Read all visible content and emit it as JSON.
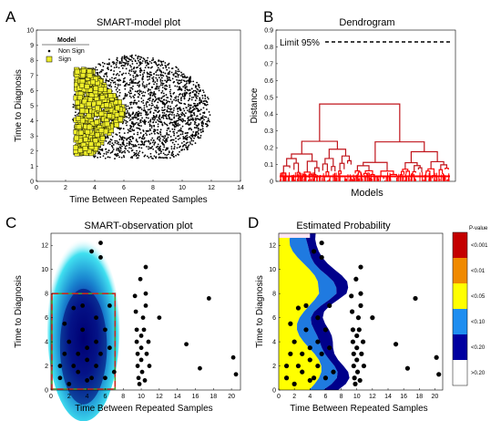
{
  "panels": {
    "A": {
      "letter": "A",
      "title": "SMART-model plot",
      "xlabel": "Time Between Repeated Samples",
      "ylabel": "Time to Diagnosis",
      "legend": {
        "title": "Model",
        "items": [
          "Non Sign",
          "Sign"
        ]
      }
    },
    "B": {
      "letter": "B",
      "title": "Dendrogram",
      "xlabel": "Models",
      "ylabel": "Distance",
      "annotation": "Limit 95%"
    },
    "C": {
      "letter": "C",
      "title": "SMART-observation plot",
      "xlabel": "Time Between Repeated Samples",
      "ylabel": "Time to Diagnosis"
    },
    "D": {
      "letter": "D",
      "title": "Estimated Probability",
      "xlabel": "Time Between Repeated Samples",
      "ylabel": "Time to Diagnosis",
      "colorbar": {
        "title": "P-value",
        "labels": [
          "<0.001",
          "<0.01",
          "<0.05",
          "<0.10",
          "<0.20",
          ">0.20"
        ]
      }
    }
  },
  "colors": {
    "nonsign": "#000000",
    "sign": "#ecec2a",
    "dendro": "#c0141b",
    "dendro_low": "#ff0000",
    "lowp": "#ffff00",
    "midp": "#1f7ae0",
    "highp": "#00008b"
  },
  "chart_data": [
    {
      "type": "scatter",
      "xlim": [
        0,
        14
      ],
      "ylim": [
        0,
        10
      ],
      "xticks": [
        "0",
        "2",
        "4",
        "6",
        "8",
        "10",
        "12",
        "14"
      ],
      "yticks": [
        "0",
        "1",
        "2",
        "3",
        "4",
        "5",
        "6",
        "7",
        "8",
        "9",
        "10"
      ],
      "cloud": {
        "x_range": [
          2.5,
          12.5
        ],
        "y_range": [
          1.5,
          8.8
        ],
        "center": [
          7.2,
          4.6
        ]
      },
      "series": [
        {
          "name": "Non Sign",
          "marker": "dot"
        },
        {
          "name": "Sign",
          "marker": "square",
          "x_range": [
            2.5,
            6.0
          ],
          "y_range": [
            1.8,
            7.4
          ]
        }
      ]
    },
    {
      "type": "dendrogram",
      "ylim": [
        0,
        0.9
      ],
      "yticks": [
        "0",
        "0.1",
        "0.2",
        "0.3",
        "0.4",
        "0.5",
        "0.6",
        "0.7",
        "0.8",
        "0.9"
      ],
      "threshold": 0.84,
      "top_merge": 0.46,
      "sub_merges": [
        0.38,
        0.35,
        0.3,
        0.27,
        0.25,
        0.22,
        0.2,
        0.18,
        0.16,
        0.13
      ]
    },
    {
      "type": "scatter",
      "xlim": [
        0,
        21
      ],
      "ylim": [
        0,
        13
      ],
      "xticks": [
        "0",
        "2",
        "4",
        "6",
        "8",
        "10",
        "12",
        "14",
        "16",
        "18",
        "20"
      ],
      "yticks": [
        "0",
        "2",
        "4",
        "6",
        "8",
        "10",
        "12"
      ],
      "highlight_box": {
        "x": [
          0,
          7
        ],
        "y": [
          0,
          8
        ]
      },
      "points": [
        [
          1,
          1
        ],
        [
          1,
          2
        ],
        [
          1.5,
          3
        ],
        [
          1.5,
          5.5
        ],
        [
          2,
          4
        ],
        [
          2,
          0.5
        ],
        [
          2.5,
          6.8
        ],
        [
          2.5,
          2
        ],
        [
          3,
          3
        ],
        [
          3,
          1.5
        ],
        [
          3.5,
          5
        ],
        [
          3.5,
          7
        ],
        [
          4,
          0.8
        ],
        [
          4,
          3.5
        ],
        [
          4,
          2.5
        ],
        [
          4.5,
          11.5
        ],
        [
          4.5,
          1
        ],
        [
          5,
          4
        ],
        [
          5,
          6
        ],
        [
          5,
          2
        ],
        [
          5.5,
          12.2
        ],
        [
          5.5,
          11
        ],
        [
          5.5,
          3
        ],
        [
          6,
          5
        ],
        [
          6,
          1
        ],
        [
          6.5,
          7
        ],
        [
          6.5,
          3.5
        ],
        [
          7,
          1.5
        ],
        [
          9.3,
          7.8
        ],
        [
          9.4,
          6.5
        ],
        [
          9.5,
          5
        ],
        [
          9.5,
          4
        ],
        [
          9.6,
          3
        ],
        [
          9.6,
          2
        ],
        [
          9.7,
          1
        ],
        [
          9.8,
          0.5
        ],
        [
          9.9,
          9.2
        ],
        [
          10,
          4.5
        ],
        [
          10,
          3.5
        ],
        [
          10,
          2.5
        ],
        [
          10.1,
          1.5
        ],
        [
          10.2,
          6
        ],
        [
          10.3,
          5
        ],
        [
          10.4,
          0.8
        ],
        [
          10.5,
          10.2
        ],
        [
          10.5,
          8
        ],
        [
          10.5,
          7
        ],
        [
          10.6,
          3
        ],
        [
          10.8,
          4
        ],
        [
          10.9,
          2
        ],
        [
          12,
          6
        ],
        [
          15,
          3.8
        ],
        [
          16.5,
          1.8
        ],
        [
          17.5,
          7.6
        ],
        [
          20.2,
          2.7
        ],
        [
          20.5,
          1.3
        ]
      ]
    },
    {
      "type": "heatmap",
      "xlim": [
        0,
        21
      ],
      "ylim": [
        0,
        13
      ],
      "xticks": [
        "0",
        "2",
        "4",
        "6",
        "8",
        "10",
        "12",
        "14",
        "16",
        "18",
        "20"
      ],
      "yticks": [
        "0",
        "2",
        "4",
        "6",
        "8",
        "10",
        "12"
      ]
    }
  ]
}
